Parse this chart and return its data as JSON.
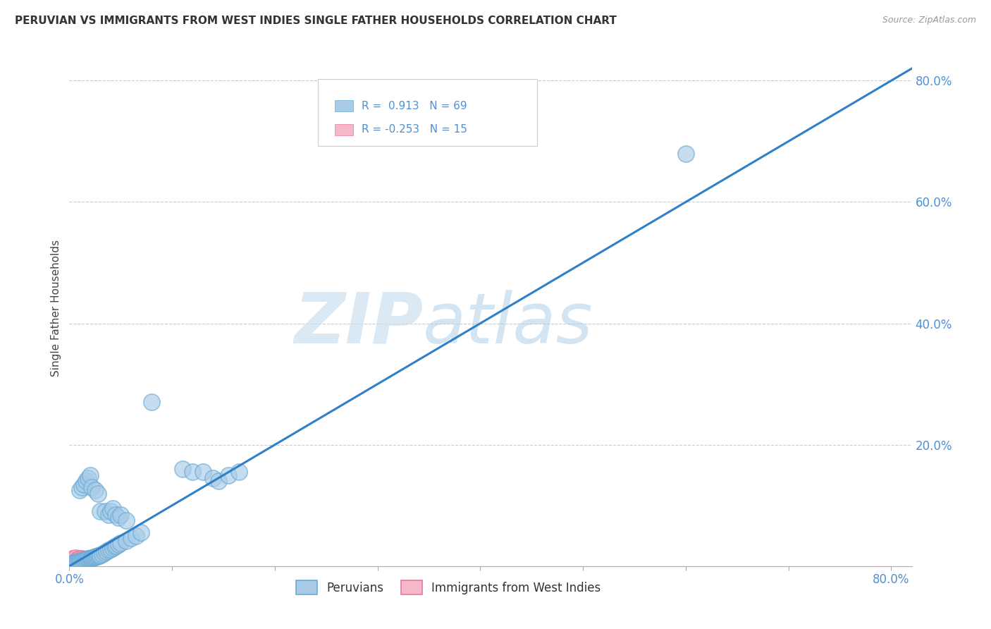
{
  "title": "PERUVIAN VS IMMIGRANTS FROM WEST INDIES SINGLE FATHER HOUSEHOLDS CORRELATION CHART",
  "source": "Source: ZipAtlas.com",
  "ylabel": "Single Father Households",
  "xlim": [
    0,
    0.82
  ],
  "ylim": [
    0,
    0.85
  ],
  "xticks": [
    0.0,
    0.1,
    0.2,
    0.3,
    0.4,
    0.5,
    0.6,
    0.7,
    0.8
  ],
  "yticks": [
    0.0,
    0.2,
    0.4,
    0.6,
    0.8
  ],
  "R_peruvian": 0.913,
  "N_peruvian": 69,
  "R_westindies": -0.253,
  "N_westindies": 15,
  "blue_color": "#a8cce8",
  "blue_edge": "#6aaad4",
  "pink_color": "#f4b8c8",
  "pink_edge": "#e87898",
  "line_color": "#3080c8",
  "tick_color": "#5090d0",
  "legend_entries": [
    "Peruvians",
    "Immigrants from West Indies"
  ],
  "peruvian_x": [
    0.6,
    0.08,
    0.11,
    0.12,
    0.13,
    0.14,
    0.145,
    0.155,
    0.165,
    0.01,
    0.012,
    0.014,
    0.016,
    0.018,
    0.02,
    0.022,
    0.025,
    0.028,
    0.03,
    0.035,
    0.038,
    0.04,
    0.042,
    0.045,
    0.048,
    0.05,
    0.055,
    0.003,
    0.004,
    0.005,
    0.006,
    0.007,
    0.008,
    0.009,
    0.01,
    0.011,
    0.012,
    0.013,
    0.014,
    0.015,
    0.016,
    0.017,
    0.018,
    0.019,
    0.02,
    0.021,
    0.022,
    0.023,
    0.024,
    0.025,
    0.026,
    0.027,
    0.028,
    0.029,
    0.03,
    0.032,
    0.034,
    0.036,
    0.038,
    0.04,
    0.042,
    0.044,
    0.046,
    0.048,
    0.05,
    0.055,
    0.06,
    0.065,
    0.07
  ],
  "peruvian_y": [
    0.68,
    0.27,
    0.16,
    0.155,
    0.155,
    0.145,
    0.14,
    0.15,
    0.155,
    0.125,
    0.13,
    0.135,
    0.14,
    0.145,
    0.15,
    0.13,
    0.125,
    0.12,
    0.09,
    0.09,
    0.085,
    0.09,
    0.095,
    0.085,
    0.08,
    0.085,
    0.075,
    0.005,
    0.005,
    0.006,
    0.006,
    0.007,
    0.007,
    0.008,
    0.008,
    0.008,
    0.009,
    0.009,
    0.01,
    0.01,
    0.011,
    0.011,
    0.012,
    0.012,
    0.013,
    0.013,
    0.014,
    0.014,
    0.015,
    0.015,
    0.016,
    0.016,
    0.017,
    0.017,
    0.018,
    0.02,
    0.022,
    0.024,
    0.026,
    0.028,
    0.03,
    0.032,
    0.034,
    0.036,
    0.038,
    0.042,
    0.046,
    0.05,
    0.055
  ],
  "westindies_x": [
    0.003,
    0.004,
    0.005,
    0.006,
    0.007,
    0.008,
    0.009,
    0.01,
    0.011,
    0.012,
    0.013,
    0.014,
    0.015,
    0.016,
    0.017
  ],
  "westindies_y": [
    0.012,
    0.01,
    0.008,
    0.014,
    0.009,
    0.011,
    0.007,
    0.012,
    0.01,
    0.008,
    0.013,
    0.009,
    0.011,
    0.007,
    0.01
  ]
}
